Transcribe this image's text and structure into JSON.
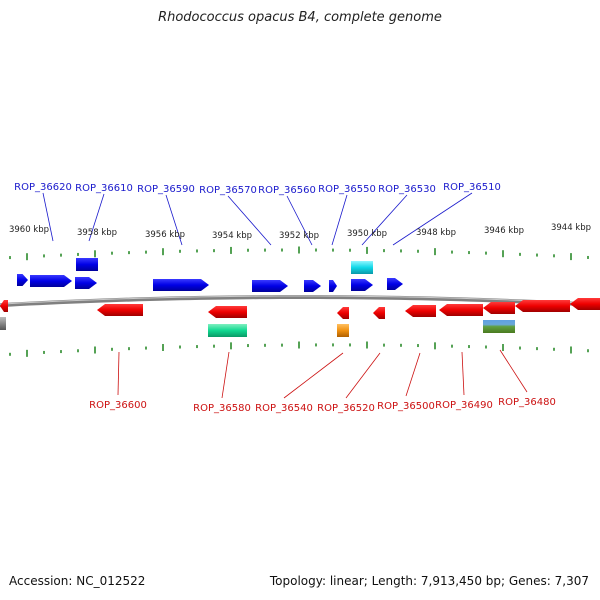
{
  "title": "Rhodococcus opacus B4, complete genome",
  "accession": "Accession: NC_012522",
  "topology": "Topology: linear; Length: 7,913,450 bp; Genes: 7,307",
  "colors": {
    "forward_gene": "#1010e0",
    "reverse_gene": "#e01010",
    "forward_label": "#1a1acc",
    "reverse_label": "#cc1111",
    "tick": "#2a8a2a",
    "backbone": "#808080",
    "cyan_feature": "#20d8e0",
    "teal_feature": "#20d890",
    "orange_feature": "#f09010"
  },
  "scale": {
    "unit": "kbp",
    "ticks": [
      {
        "label": "3960 kbp"
      },
      {
        "label": "3958 kbp"
      },
      {
        "label": "3956 kbp"
      },
      {
        "label": "3954 kbp"
      },
      {
        "label": "3952 kbp"
      },
      {
        "label": "3950 kbp"
      },
      {
        "label": "3948 kbp"
      },
      {
        "label": "3946 kbp"
      },
      {
        "label": "3944 kbp"
      }
    ]
  },
  "forward_genes": [
    {
      "label": "ROP_36620"
    },
    {
      "label": "ROP_36610"
    },
    {
      "label": "ROP_36590"
    },
    {
      "label": "ROP_36570"
    },
    {
      "label": "ROP_36560"
    },
    {
      "label": "ROP_36550"
    },
    {
      "label": "ROP_36530"
    },
    {
      "label": "ROP_36510"
    }
  ],
  "reverse_genes": [
    {
      "label": "ROP_36600"
    },
    {
      "label": "ROP_36580"
    },
    {
      "label": "ROP_36540"
    },
    {
      "label": "ROP_36520"
    },
    {
      "label": "ROP_36500"
    },
    {
      "label": "ROP_36490"
    },
    {
      "label": "ROP_36480"
    }
  ]
}
